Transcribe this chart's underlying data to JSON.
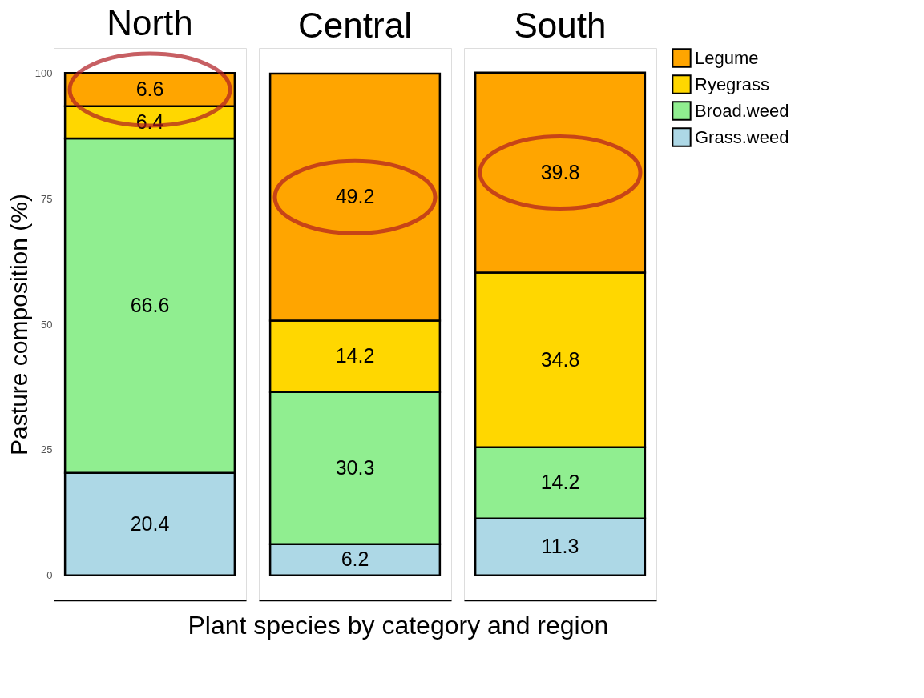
{
  "chart_data": {
    "type": "bar",
    "stacked": true,
    "xlabel": "Plant species by category and region",
    "ylabel": "Pasture composition (%)",
    "categories": [
      "North",
      "Central",
      "South"
    ],
    "series": [
      {
        "name": "Grass.weed",
        "color": "#add8e6",
        "values": [
          20.4,
          6.2,
          11.3
        ]
      },
      {
        "name": "Broad.weed",
        "color": "#90ee90",
        "values": [
          66.6,
          30.3,
          14.2
        ]
      },
      {
        "name": "Ryegrass",
        "color": "#ffd700",
        "values": [
          6.4,
          14.2,
          34.8
        ]
      },
      {
        "name": "Legume",
        "color": "#ffa500",
        "values": [
          6.6,
          49.2,
          39.8
        ]
      }
    ],
    "ylim": [
      -5,
      105
    ],
    "yticks": [
      0,
      25,
      50,
      75,
      100
    ],
    "data_labels": true,
    "legend": "right",
    "grid": false
  }
}
